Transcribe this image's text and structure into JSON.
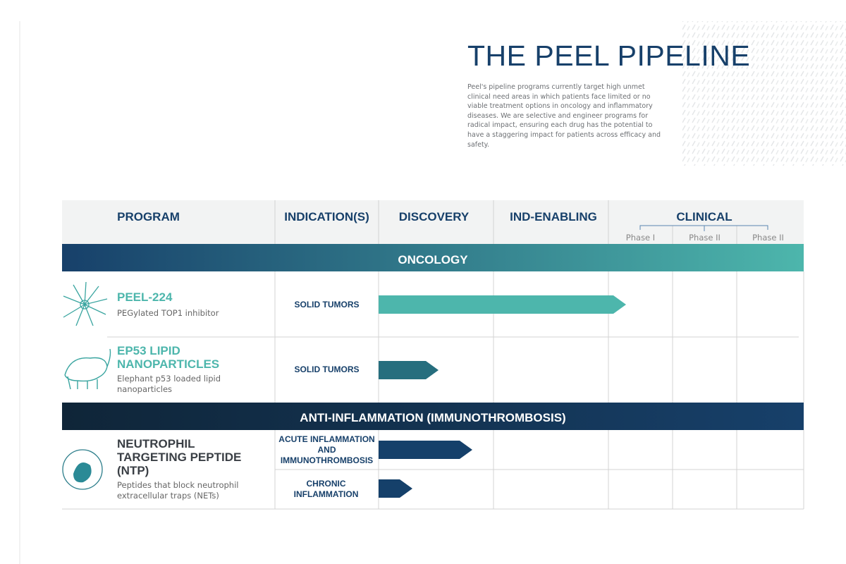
{
  "header": {
    "title": "THE PEEL PIPELINE",
    "description": "Peel's pipeline programs currently target high unmet clinical need areas in which patients face limited or no viable treatment options in oncology and inflammatory diseases. We are selective and engineer programs for radical impact, ensuring each drug has the potential to have a staggering impact for patients across efficacy and safety."
  },
  "table": {
    "columns": [
      "PROGRAM",
      "INDICATION(S)",
      "DISCOVERY",
      "IND-ENABLING",
      "CLINICAL"
    ],
    "phases": [
      "Phase I",
      "Phase II",
      "Phase II"
    ],
    "sections": [
      {
        "label": "ONCOLOGY",
        "programs": [
          {
            "name": "PEEL-224",
            "description": "PEGylated TOP1 inhibitor",
            "indications": [
              "SOLID TUMORS"
            ]
          },
          {
            "name": "EP53 LIPID NANOPARTICLES",
            "description": "Elephant p53 loaded lipid nanoparticles",
            "indications": [
              "SOLID TUMORS"
            ]
          }
        ]
      },
      {
        "label": "ANTI-INFLAMMATION (IMMUNOTHROMBOSIS)",
        "programs": [
          {
            "name": "NEUTROPHIL TARGETING PEPTIDE (NTP)",
            "description": "Peptides that block neutrophil extracellular traps (NETs)",
            "indications": [
              "ACUTE INFLAMMATION AND IMMUNOTHROMBOSIS",
              "CHRONIC INFLAMMATION"
            ]
          }
        ]
      }
    ]
  }
}
